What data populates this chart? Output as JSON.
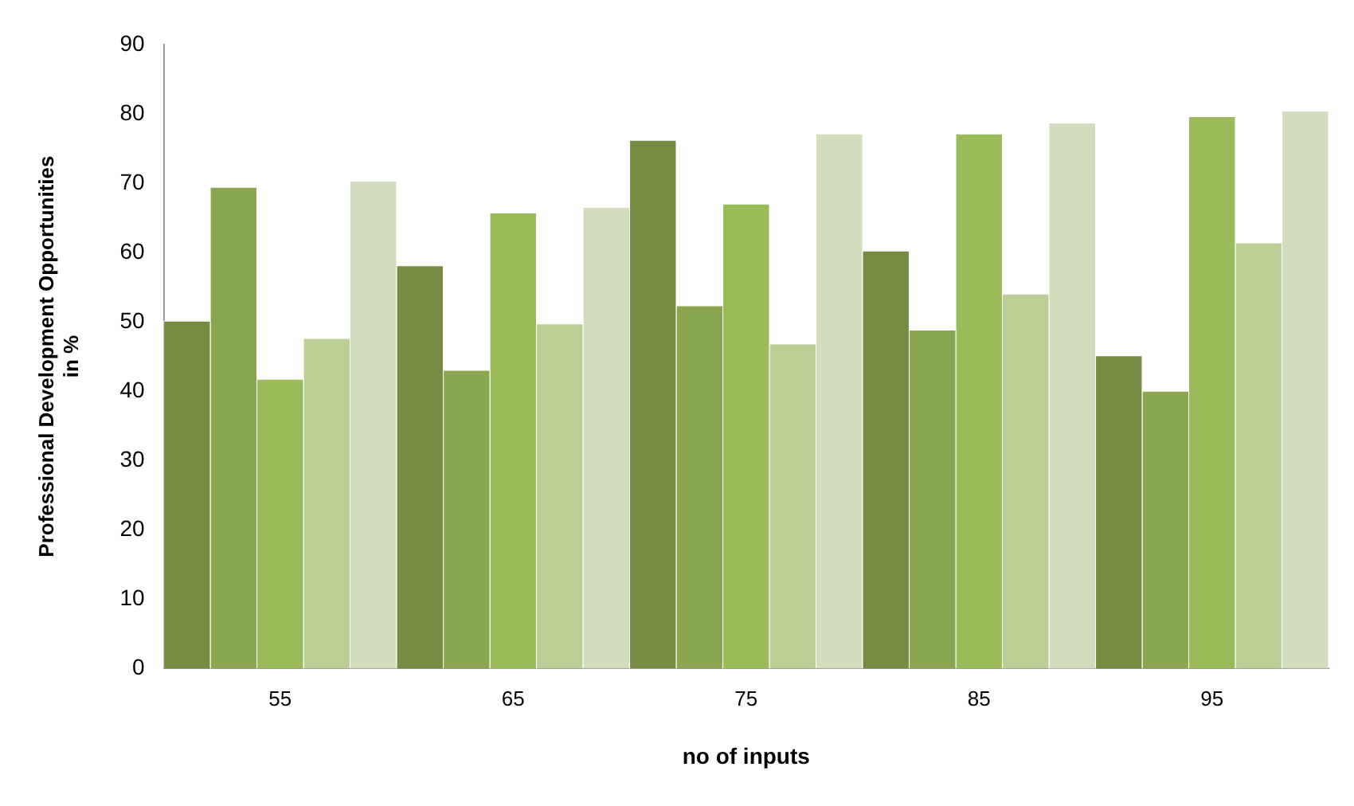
{
  "chart_data": {
    "type": "bar",
    "xlabel": "no of inputs",
    "ylabel": "Professional Development Opportunities in %",
    "categories": [
      "55",
      "65",
      "75",
      "85",
      "95"
    ],
    "series": [
      {
        "color": "#758c42",
        "values": [
          50.1,
          58.1,
          76.2,
          60.2,
          45.1
        ]
      },
      {
        "color": "#8aa64e",
        "values": [
          69.4,
          43.0,
          52.3,
          48.8,
          40.0
        ]
      },
      {
        "color": "#9bbb59",
        "values": [
          41.7,
          65.7,
          67.0,
          77.1,
          79.6
        ]
      },
      {
        "color": "#bacf95",
        "values": [
          47.6,
          49.7,
          46.8,
          54.0,
          61.4
        ]
      },
      {
        "color": "#d1ddbd",
        "values": [
          70.3,
          66.5,
          77.1,
          78.7,
          80.4
        ]
      }
    ],
    "ylim": [
      0,
      90
    ],
    "yticks": [
      0,
      10,
      20,
      30,
      40,
      50,
      60,
      70,
      80,
      90
    ],
    "grid": false,
    "legend": false
  }
}
